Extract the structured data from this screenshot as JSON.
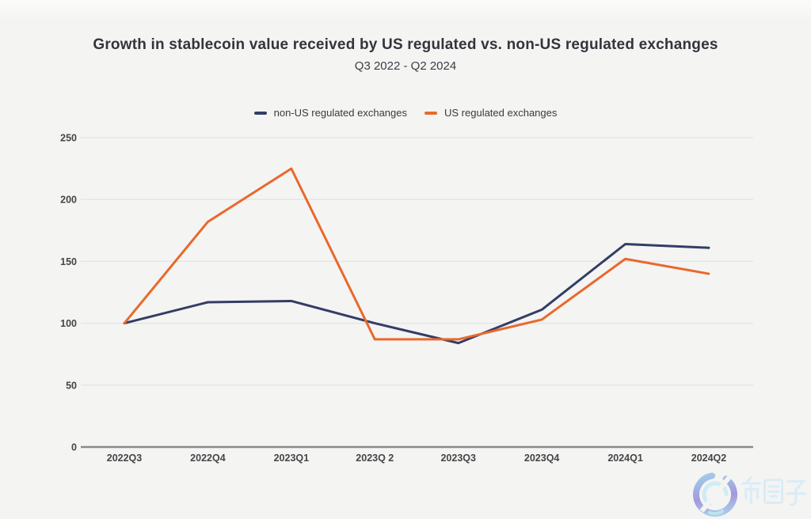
{
  "chart_data": {
    "type": "line",
    "title": "Growth in stablecoin value received by US regulated vs. non-US regulated exchanges",
    "subtitle": "Q3 2022 - Q2 2024",
    "categories": [
      "2022Q3",
      "2022Q4",
      "2023Q1",
      "2023Q 2",
      "2023Q3",
      "2023Q4",
      "2024Q1",
      "2024Q2"
    ],
    "series": [
      {
        "name": "non-US regulated exchanges",
        "color": "#333d66",
        "values": [
          100,
          117,
          118,
          100,
          84,
          111,
          164,
          161
        ]
      },
      {
        "name": "US regulated exchanges",
        "color": "#e8692c",
        "values": [
          100,
          182,
          225,
          87,
          87,
          103,
          152,
          140
        ]
      }
    ],
    "xlabel": "",
    "ylabel": "",
    "ylim": [
      0,
      250
    ],
    "y_ticks": [
      0,
      50,
      100,
      150,
      200,
      250
    ],
    "grid": true,
    "legend_position": "top"
  },
  "watermark": {
    "text": "币圈子",
    "ring_color_top": "#9ed3f0",
    "ring_color_bottom": "#9a93da",
    "inner_arc_color": "#c8e9f6",
    "glyph_color": "#d7ecf8"
  },
  "colors": {
    "background": "#f4f4f2",
    "gridline": "#e4e4e2",
    "axis_line": "#8a8a8a",
    "title_text": "#33343d",
    "tick_text": "#454549"
  }
}
